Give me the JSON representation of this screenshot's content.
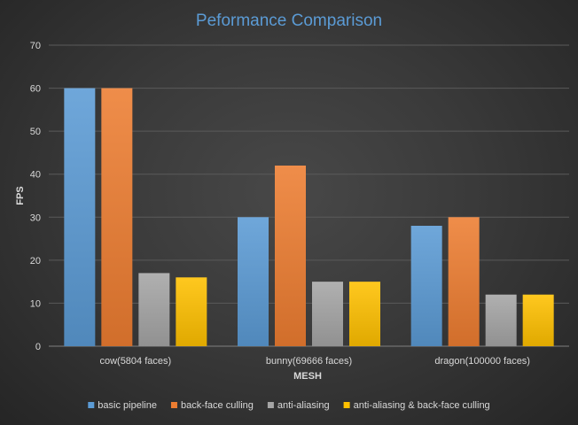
{
  "chart_data": {
    "type": "bar",
    "title": "Peformance Comparison",
    "xlabel": "MESH",
    "ylabel": "FPS",
    "ylim": [
      0,
      70
    ],
    "yticks": [
      0,
      10,
      20,
      30,
      40,
      50,
      60,
      70
    ],
    "categories": [
      "cow(5804 faces)",
      "bunny(69666 faces)",
      "dragon(100000 faces)"
    ],
    "series": [
      {
        "name": "basic pipeline",
        "values": [
          60,
          30,
          28
        ],
        "color": "#5b9bd5"
      },
      {
        "name": "back-face culling",
        "values": [
          60,
          42,
          30
        ],
        "color": "#ed7d31"
      },
      {
        "name": "anti-aliasing",
        "values": [
          17,
          15,
          12
        ],
        "color": "#a5a5a5"
      },
      {
        "name": "anti-aliasing & back-face culling",
        "values": [
          16,
          15,
          12
        ],
        "color": "#ffc000"
      }
    ],
    "grid": true,
    "legend_position": "bottom"
  }
}
